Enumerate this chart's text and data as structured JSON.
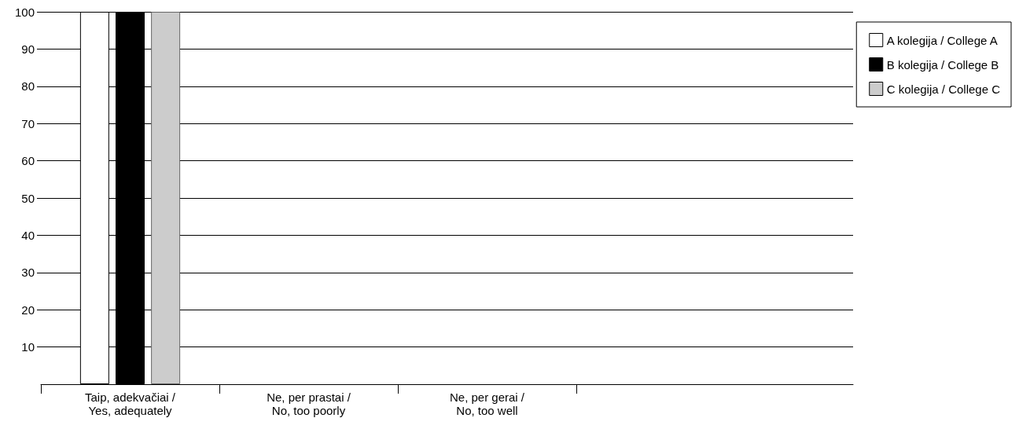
{
  "chart_data": {
    "type": "bar",
    "categories": [
      "Taip, adekvačiai /\nYes, adequately",
      "Ne, per prastai /\nNo, too poorly",
      "Ne, per gerai /\nNo, too well"
    ],
    "series": [
      {
        "name": "A kolegija / College A",
        "color": "#ffffff",
        "values": [
          100,
          null,
          null
        ]
      },
      {
        "name": "B kolegija / College B",
        "color": "#000000",
        "values": [
          100,
          null,
          null
        ]
      },
      {
        "name": "C kolegija / College C",
        "color": "#cccccc",
        "values": [
          100,
          null,
          null
        ]
      }
    ],
    "ylim": [
      0,
      100
    ],
    "yticks": [
      10,
      20,
      30,
      40,
      50,
      60,
      70,
      80,
      90,
      100
    ],
    "grid": "y",
    "legend": "top right"
  }
}
